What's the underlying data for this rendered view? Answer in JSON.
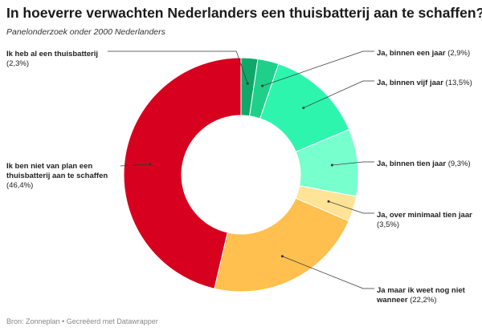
{
  "title": "In hoeverre verwachten Nederlanders een thuisbatterij aan te schaffen?",
  "subtitle": "Panelonderzoek onder 2000 Nederlanders",
  "footer": "Bron: Zonneplan • Gecreëerd met Datawrapper",
  "chart_data": {
    "type": "pie",
    "donut": true,
    "title": "In hoeverre verwachten Nederlanders een thuisbatterij aan te schaffen?",
    "subtitle": "Panelonderzoek onder 2000 Nederlanders",
    "slices": [
      {
        "label": "Ik heb al een thuisbatterij",
        "value": 2.3,
        "value_label": "(2,3%)",
        "color": "#10a86a"
      },
      {
        "label": "Ja, binnen een jaar",
        "value": 2.9,
        "value_label": "(2,9%)",
        "color": "#1fd08a"
      },
      {
        "label": "Ja, binnen vijf jaar",
        "value": 13.5,
        "value_label": "(13,5%)",
        "color": "#2ef5ad"
      },
      {
        "label": "Ja, binnen tien jaar",
        "value": 9.3,
        "value_label": "(9,3%)",
        "color": "#78ffce"
      },
      {
        "label": "Ja, over minimaal tien jaar",
        "value": 3.5,
        "value_label": "(3,5%)",
        "color": "#ffe396"
      },
      {
        "label": "Ja maar ik weet nog niet wanneer",
        "value": 22.2,
        "value_label": "(22,2%)",
        "color": "#ffc050"
      },
      {
        "label": "Ik ben niet van plan een thuisbatterij aan te schaffen",
        "value": 46.4,
        "value_label": "(46,4%)",
        "color": "#d7001e"
      }
    ]
  }
}
